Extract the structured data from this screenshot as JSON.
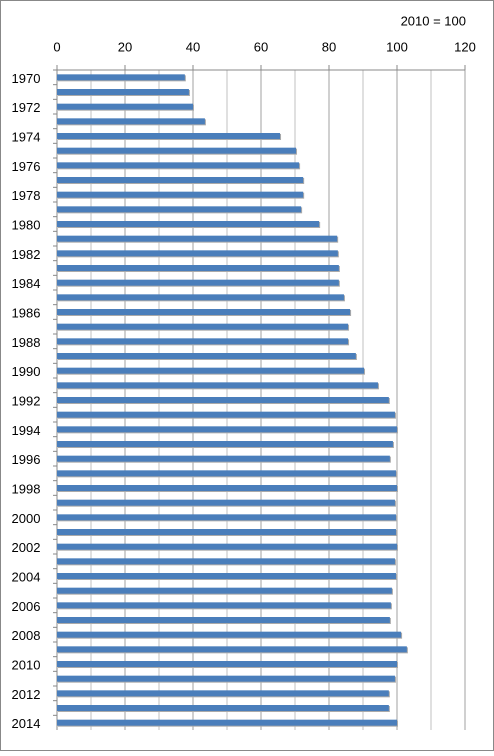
{
  "chart_data": {
    "type": "hbar",
    "annotation": "2010 = 100",
    "categories": [
      "1970",
      null,
      "1972",
      null,
      "1974",
      null,
      "1976",
      null,
      "1978",
      null,
      "1980",
      null,
      "1982",
      null,
      "1984",
      null,
      "1986",
      null,
      "1988",
      null,
      "1990",
      null,
      "1992",
      null,
      "1994",
      null,
      "1996",
      null,
      "1998",
      null,
      "2000",
      null,
      "2002",
      null,
      "2004",
      null,
      "2006",
      null,
      "2008",
      null,
      "2010",
      null,
      "2012",
      null,
      "2014"
    ],
    "values": [
      37.6,
      38.8,
      40,
      43.5,
      65.6,
      70.3,
      71.2,
      72.4,
      72.4,
      71.8,
      77.1,
      82.4,
      82.6,
      82.9,
      82.9,
      84.4,
      86.2,
      85.6,
      85.6,
      87.9,
      90.3,
      94.4,
      97.6,
      99.4,
      100,
      98.8,
      97.9,
      99.7,
      100,
      99.4,
      99.7,
      99.7,
      100,
      99.4,
      99.7,
      98.5,
      98.2,
      97.9,
      101.2,
      102.9,
      100,
      99.4,
      97.6,
      97.6,
      100
    ],
    "color": "#4a7ebb",
    "xlim": [
      0,
      120
    ],
    "xticks": [
      0,
      20,
      40,
      60,
      80,
      100,
      120
    ],
    "minor_xticks": [
      10,
      30,
      50,
      70,
      90,
      110
    ],
    "grid": true
  }
}
